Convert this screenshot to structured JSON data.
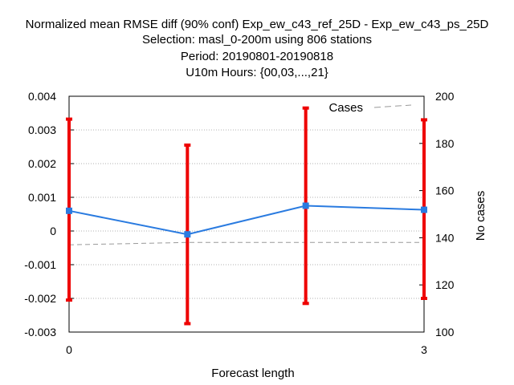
{
  "title_lines": [
    "Normalized mean RMSE diff (90% conf) Exp_ew_c43_ref_25D - Exp_ew_c43_ps_25D",
    "Selection: masl_0-200m using   806 stations",
    "Period: 20190801-20190818",
    "U10m   Hours: {00,03,...,21}"
  ],
  "chart_data": {
    "type": "line",
    "xlabel": "Forecast length",
    "ylabel_left": "",
    "ylabel_right": "No cases",
    "x_ticks": [
      "0",
      "3"
    ],
    "xlim": [
      0,
      3
    ],
    "ylim_left": [
      -0.003,
      0.004
    ],
    "y_ticks_left": [
      "-0.003",
      "-0.002",
      "-0.001",
      "0",
      "0.001",
      "0.002",
      "0.003",
      "0.004"
    ],
    "ylim_right": [
      100,
      200
    ],
    "y_ticks_right": [
      "100",
      "120",
      "140",
      "160",
      "180",
      "200"
    ],
    "grid": true,
    "legend": {
      "position": "top-right",
      "entries": [
        "Cases"
      ]
    },
    "series": [
      {
        "axis": "left",
        "color": "#2a7be0",
        "x": [
          0,
          1,
          2,
          3
        ],
        "values": [
          0.0006,
          -0.0001,
          0.00075,
          0.00063
        ],
        "error_low": [
          -0.00205,
          -0.00275,
          -0.00215,
          -0.002
        ],
        "error_high": [
          0.00332,
          0.00255,
          0.00365,
          0.0033
        ],
        "error_color": "#ee0000"
      },
      {
        "name": "Cases",
        "axis": "right",
        "color": "#999999",
        "style": "dashed",
        "x": [
          0,
          1,
          2,
          3
        ],
        "values": [
          137,
          138,
          138,
          138
        ]
      }
    ]
  }
}
